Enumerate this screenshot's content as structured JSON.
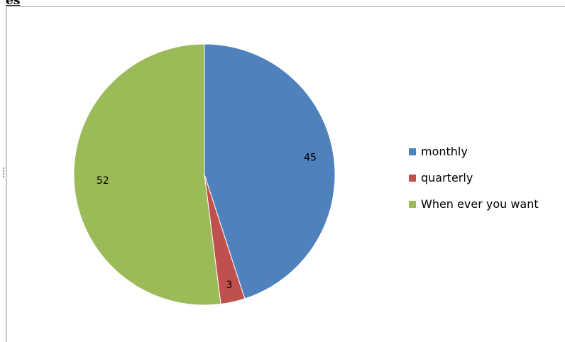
{
  "header": {
    "label": "es"
  },
  "chart_data": {
    "type": "pie",
    "slices": [
      {
        "label": "monthly",
        "value": 45,
        "color": "#4F81BD"
      },
      {
        "label": "quarterly",
        "value": 3,
        "color": "#C0504D"
      },
      {
        "label": "When ever you want",
        "value": 52,
        "color": "#9BBB59"
      }
    ],
    "legend_position": "right"
  }
}
